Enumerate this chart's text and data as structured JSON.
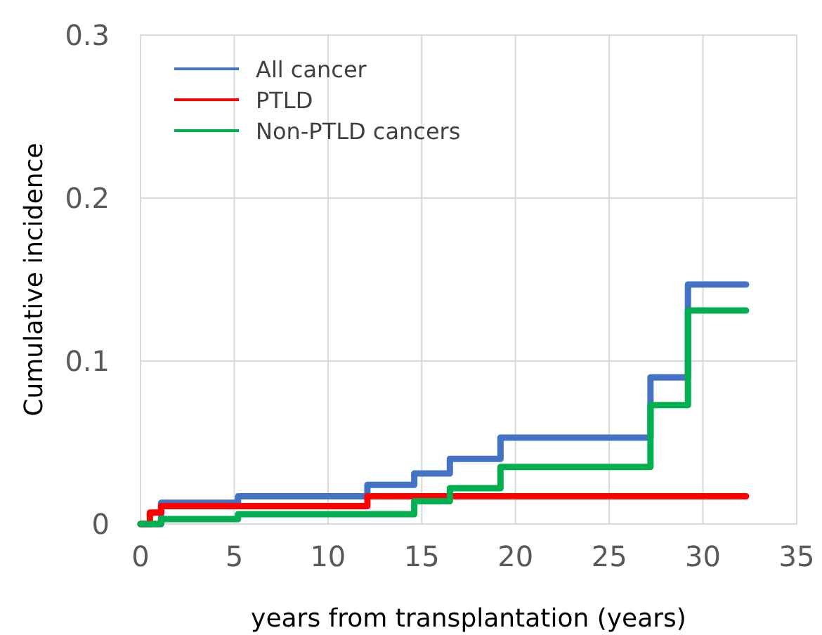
{
  "chart_data": {
    "type": "step",
    "xlabel": "years from transplantation (years)",
    "ylabel": "Cumulative incidence",
    "xlim": [
      0,
      35
    ],
    "xticks": [
      0,
      5,
      10,
      15,
      20,
      25,
      30,
      35
    ],
    "ylim": [
      0,
      0.3
    ],
    "yticks": [
      0,
      0.1,
      0.2,
      0.3
    ],
    "grid": true,
    "legend": "top left",
    "series": [
      {
        "name": "All cancer",
        "color": "#4472c4",
        "x": [
          0,
          1.1,
          5.2,
          12.1,
          14.6,
          16.5,
          19.2,
          27.2,
          29.2,
          32.3
        ],
        "values": [
          0,
          0.013,
          0.017,
          0.024,
          0.031,
          0.04,
          0.053,
          0.09,
          0.147,
          0.147
        ]
      },
      {
        "name": "PTLD",
        "color": "#ff0000",
        "x": [
          0,
          0.5,
          1.1,
          12.1,
          32.3
        ],
        "values": [
          0,
          0.007,
          0.011,
          0.017,
          0.017
        ]
      },
      {
        "name": "Non-PTLD cancers",
        "color": "#00b050",
        "x": [
          0,
          1.1,
          5.2,
          14.6,
          16.5,
          19.2,
          27.2,
          29.2,
          32.3
        ],
        "values": [
          0,
          0.003,
          0.006,
          0.014,
          0.022,
          0.035,
          0.073,
          0.131,
          0.131
        ]
      }
    ]
  }
}
